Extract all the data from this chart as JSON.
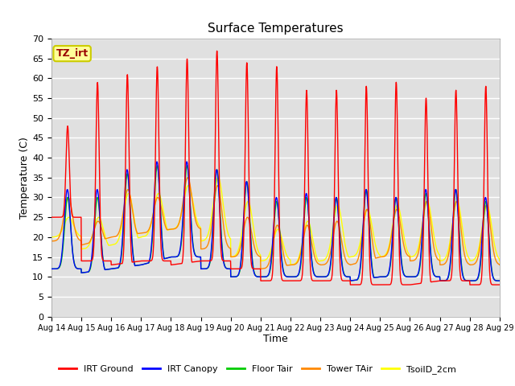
{
  "title": "Surface Temperatures",
  "xlabel": "Time",
  "ylabel": "Temperature (C)",
  "ylim": [
    0,
    70
  ],
  "yticks": [
    0,
    5,
    10,
    15,
    20,
    25,
    30,
    35,
    40,
    45,
    50,
    55,
    60,
    65,
    70
  ],
  "x_labels": [
    "Aug 14",
    "Aug 15",
    "Aug 16",
    "Aug 17",
    "Aug 18",
    "Aug 19",
    "Aug 20",
    "Aug 21",
    "Aug 22",
    "Aug 23",
    "Aug 24",
    "Aug 25",
    "Aug 26",
    "Aug 27",
    "Aug 28",
    "Aug 29"
  ],
  "annotation_text": "TZ_irt",
  "annotation_bg": "#FFFF99",
  "annotation_border": "#CCCC00",
  "plot_bg": "#E0E0E0",
  "n_days": 15,
  "irt_ground_peaks": [
    48,
    59,
    61,
    63,
    65,
    67,
    64,
    63,
    57,
    57,
    58,
    59,
    55,
    57,
    58,
    58
  ],
  "irt_ground_mins": [
    25,
    14,
    13,
    14,
    13,
    14,
    12,
    9,
    9,
    9,
    8,
    8,
    8,
    9,
    8,
    8
  ],
  "irt_canopy_peaks": [
    32,
    32,
    37,
    39,
    39,
    37,
    34,
    30,
    31,
    30,
    32,
    30,
    32,
    32,
    30,
    30
  ],
  "irt_canopy_mins": [
    12,
    11,
    12,
    13,
    15,
    12,
    10,
    10,
    10,
    10,
    9,
    10,
    10,
    9,
    9,
    9
  ],
  "floor_tair_peaks": [
    30,
    30,
    36,
    38,
    38,
    37,
    34,
    29,
    30,
    30,
    32,
    30,
    31,
    32,
    29,
    29
  ],
  "floor_tair_mins": [
    12,
    11,
    12,
    13,
    15,
    12,
    10,
    10,
    10,
    10,
    9,
    10,
    10,
    9,
    9,
    9
  ],
  "tower_tair_peaks": [
    30,
    24,
    32,
    30,
    35,
    33,
    25,
    23,
    23,
    24,
    27,
    27,
    29,
    29,
    28,
    28
  ],
  "tower_tair_mins": [
    19,
    18,
    20,
    21,
    22,
    17,
    15,
    12,
    13,
    13,
    13,
    15,
    14,
    13,
    13,
    13
  ],
  "soil_2cm_peaks": [
    25,
    25,
    31,
    31,
    33,
    35,
    29,
    22,
    24,
    28,
    27,
    28,
    29,
    29,
    28,
    28
  ],
  "soil_2cm_mins": [
    20,
    17,
    18,
    20,
    22,
    19,
    15,
    14,
    13,
    14,
    15,
    15,
    15,
    14,
    14,
    14
  ],
  "colors": {
    "IRT Ground": "#FF0000",
    "IRT Canopy": "#0000FF",
    "Floor Tair": "#00CC00",
    "Tower TAir": "#FF8800",
    "TsoilD_2cm": "#FFFF00"
  }
}
